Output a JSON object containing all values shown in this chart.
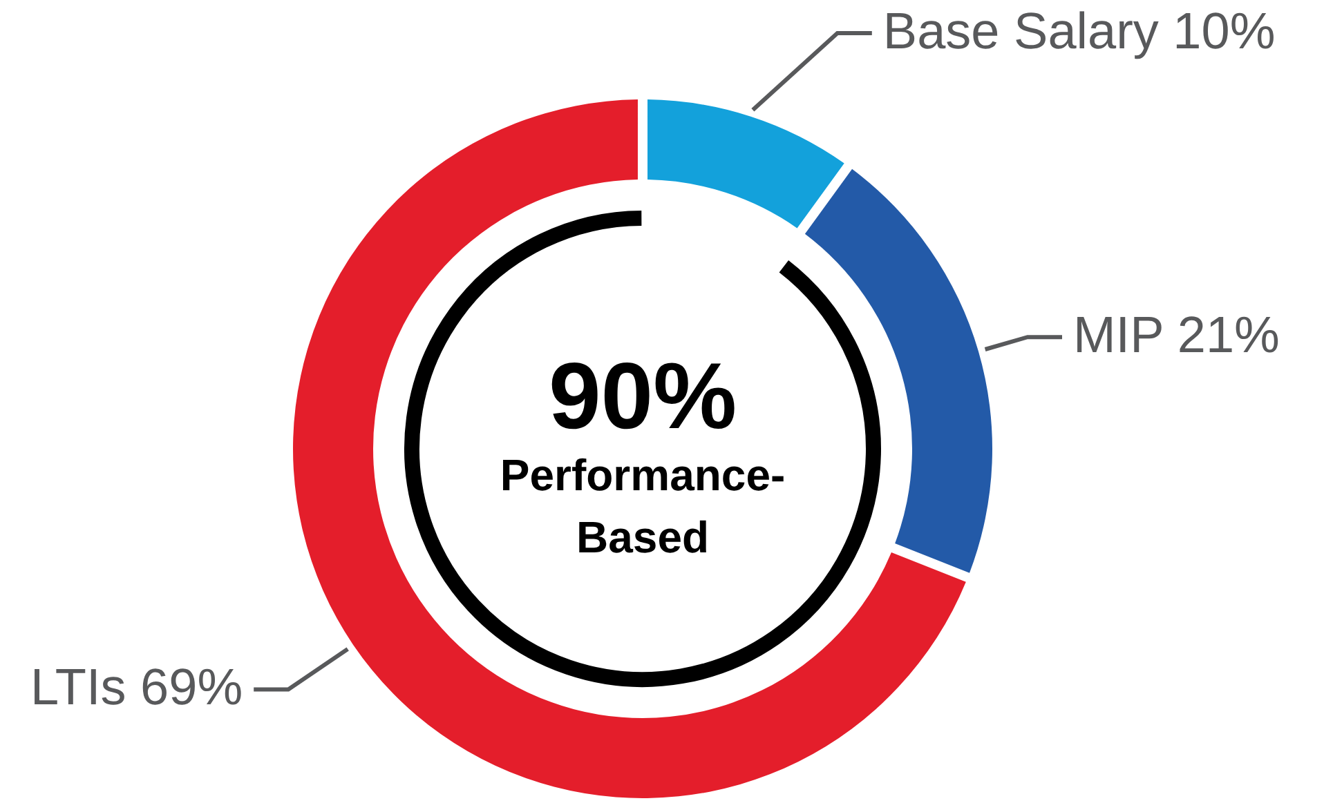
{
  "chart_data": {
    "type": "donut",
    "categories": [
      "Base Salary",
      "MIP",
      "LTIs"
    ],
    "values": [
      10,
      21,
      69
    ],
    "colors": [
      "#13a1db",
      "#235aa8",
      "#e41e2b"
    ],
    "value_labels": [
      "10%",
      "21%",
      "69%"
    ],
    "annotations": [
      "90%",
      "Performance-Based"
    ]
  }
}
